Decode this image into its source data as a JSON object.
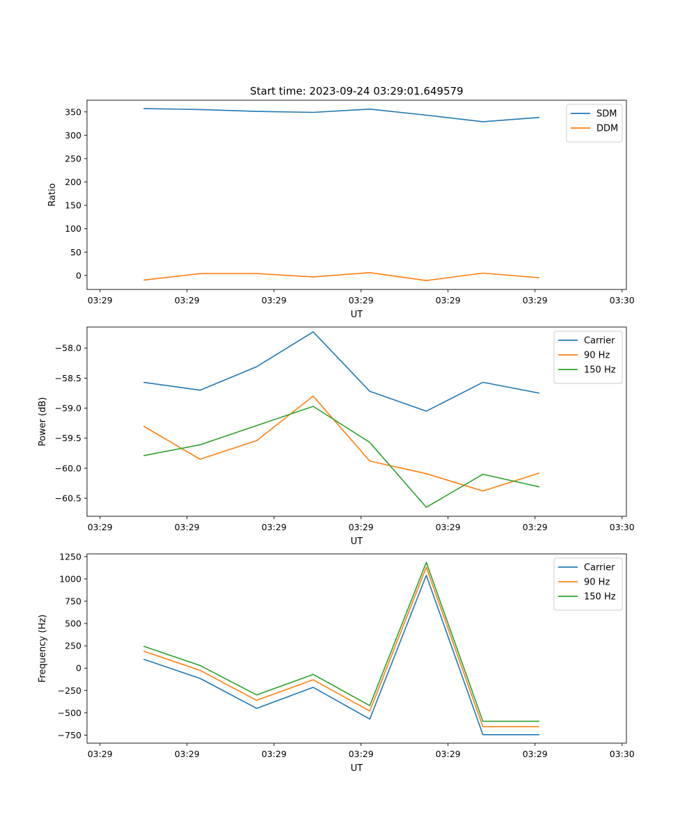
{
  "chart_data": [
    {
      "type": "line",
      "title": "Start time: 2023-09-24 03:29:01.649579",
      "xlabel": "UT",
      "ylabel": "Ratio",
      "x_tick_labels": [
        "03:29",
        "03:29",
        "03:29",
        "03:29",
        "03:29",
        "03:29",
        "03:30"
      ],
      "xlim": [
        -0.15,
        6.05
      ],
      "x": [
        0.5,
        1.15,
        1.8,
        2.45,
        3.1,
        3.75,
        4.4,
        5.05
      ],
      "ylim": [
        -30,
        375
      ],
      "y_ticks": [
        0,
        50,
        100,
        150,
        200,
        250,
        300,
        350
      ],
      "legend_position": "upper-right",
      "series": [
        {
          "name": "SDM",
          "color": "#1f77b4",
          "values": [
            357,
            355,
            351,
            349,
            356,
            343,
            329,
            338
          ]
        },
        {
          "name": "DDM",
          "color": "#ff7f0e",
          "values": [
            -10,
            4,
            4,
            -3,
            6,
            -11,
            5,
            -5
          ]
        }
      ]
    },
    {
      "type": "line",
      "title": "",
      "xlabel": "UT",
      "ylabel": "Power (dB)",
      "x_tick_labels": [
        "03:29",
        "03:29",
        "03:29",
        "03:29",
        "03:29",
        "03:29",
        "03:30"
      ],
      "xlim": [
        -0.15,
        6.05
      ],
      "x": [
        0.5,
        1.15,
        1.8,
        2.45,
        3.1,
        3.75,
        4.4,
        5.05
      ],
      "ylim": [
        -60.8,
        -57.65
      ],
      "y_ticks": [
        -60.5,
        -60.0,
        -59.5,
        -59.0,
        -58.5,
        -58.0
      ],
      "y_tick_labels": [
        "−60.5",
        "−60.0",
        "−59.5",
        "−59.0",
        "−58.5",
        "−58.0"
      ],
      "legend_position": "upper-right",
      "series": [
        {
          "name": "Carrier",
          "color": "#1f77b4",
          "values": [
            -58.57,
            -58.7,
            -58.31,
            -57.73,
            -58.72,
            -59.05,
            -58.57,
            -58.75
          ]
        },
        {
          "name": "90 Hz",
          "color": "#ff7f0e",
          "values": [
            -59.3,
            -59.85,
            -59.54,
            -58.8,
            -59.88,
            -60.09,
            -60.38,
            -60.08
          ]
        },
        {
          "name": "150 Hz",
          "color": "#2ca02c",
          "values": [
            -59.79,
            -59.61,
            -59.29,
            -58.97,
            -59.57,
            -60.65,
            -60.1,
            -60.31
          ]
        }
      ]
    },
    {
      "type": "line",
      "title": "",
      "xlabel": "UT",
      "ylabel": "Frequency (Hz)",
      "x_tick_labels": [
        "03:29",
        "03:29",
        "03:29",
        "03:29",
        "03:29",
        "03:29",
        "03:30"
      ],
      "xlim": [
        -0.15,
        6.05
      ],
      "x": [
        0.5,
        1.15,
        1.8,
        2.45,
        3.1,
        3.75,
        4.4,
        5.05
      ],
      "ylim": [
        -840,
        1280
      ],
      "y_ticks": [
        -750,
        -500,
        -250,
        0,
        250,
        500,
        750,
        1000,
        1250
      ],
      "y_tick_labels": [
        "−750",
        "−500",
        "−250",
        "0",
        "250",
        "500",
        "750",
        "1000",
        "1250"
      ],
      "legend_position": "upper-right",
      "series": [
        {
          "name": "Carrier",
          "color": "#1f77b4",
          "values": [
            100,
            -115,
            -450,
            -215,
            -570,
            1040,
            -745,
            -745
          ]
        },
        {
          "name": "90 Hz",
          "color": "#ff7f0e",
          "values": [
            190,
            -25,
            -360,
            -130,
            -480,
            1130,
            -655,
            -655
          ]
        },
        {
          "name": "150 Hz",
          "color": "#2ca02c",
          "values": [
            245,
            30,
            -300,
            -70,
            -420,
            1185,
            -595,
            -595
          ]
        }
      ]
    }
  ]
}
